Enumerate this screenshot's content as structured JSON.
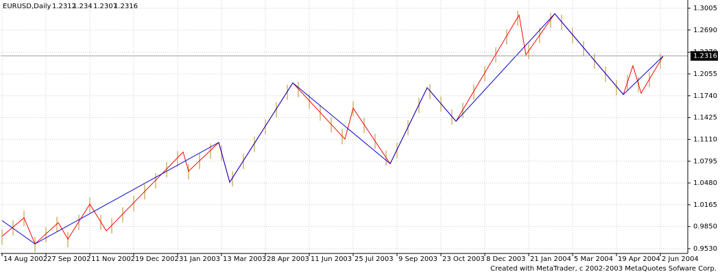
{
  "header": {
    "symbol": "EURUSD,Daily",
    "ohlc": [
      1.2312,
      1.234,
      1.2307,
      1.2316
    ]
  },
  "footer": "Created with MetaTrader, c 2002-2003 MetaQuotes Sofware Corp.",
  "chart_data": {
    "type": "line",
    "grid": true,
    "xlim": [
      -1,
      500
    ],
    "ylim": [
      0.9461,
      1.3124
    ],
    "xticks": [
      {
        "value": 0,
        "label": "14 Aug 2002"
      },
      {
        "value": 32,
        "label": "27 Sep 2002"
      },
      {
        "value": 64,
        "label": "11 Nov 2002"
      },
      {
        "value": 96,
        "label": "19 Dec 2002"
      },
      {
        "value": 128,
        "label": "31 Jan 2003"
      },
      {
        "value": 160,
        "label": "13 Mar 2003"
      },
      {
        "value": 192,
        "label": "28 Apr 2003"
      },
      {
        "value": 224,
        "label": "11 Jun 2003"
      },
      {
        "value": 256,
        "label": "25 Jul 2003"
      },
      {
        "value": 288,
        "label": "9 Sep 2003"
      },
      {
        "value": 320,
        "label": "23 Oct 2003"
      },
      {
        "value": 352,
        "label": "8 Dec 2003"
      },
      {
        "value": 384,
        "label": "21 Jan 2004"
      },
      {
        "value": 416,
        "label": "5 Mar 2004"
      },
      {
        "value": 448,
        "label": "19 Apr 2004"
      },
      {
        "value": 480,
        "label": "2 Jun 2004"
      }
    ],
    "yticks": [
      {
        "value": 0.953,
        "label": "0.9530"
      },
      {
        "value": 0.985,
        "label": "0.9850"
      },
      {
        "value": 1.0165,
        "label": "1.0165"
      },
      {
        "value": 1.048,
        "label": "1.0480"
      },
      {
        "value": 1.0795,
        "label": "1.0795"
      },
      {
        "value": 1.111,
        "label": "1.1110"
      },
      {
        "value": 1.1425,
        "label": "1.1425"
      },
      {
        "value": 1.174,
        "label": "1.1740"
      },
      {
        "value": 1.2055,
        "label": "1.2055"
      },
      {
        "value": 1.237,
        "label": "1.2370"
      },
      {
        "value": 1.269,
        "label": "1.2690"
      },
      {
        "value": 1.3005,
        "label": "1.3005"
      }
    ],
    "current_price": 1.2316,
    "bars": {
      "color": "#d8c690",
      "x": [
        0,
        8,
        16,
        24,
        32,
        40,
        48,
        56,
        64,
        72,
        80,
        88,
        96,
        104,
        112,
        120,
        128,
        136,
        144,
        152,
        160,
        168,
        176,
        184,
        192,
        200,
        208,
        216,
        224,
        232,
        240,
        248,
        256,
        264,
        272,
        280,
        288,
        296,
        304,
        312,
        320,
        328,
        336,
        344,
        352,
        360,
        368,
        376,
        384,
        392,
        400,
        408,
        416,
        424,
        432,
        440,
        448,
        456,
        464,
        472,
        480
      ],
      "high": [
        0.981,
        0.994,
        1.008,
        0.97,
        0.984,
        0.999,
        0.977,
        1.002,
        1.027,
        1.002,
        0.997,
        1.013,
        1.029,
        1.046,
        1.062,
        1.078,
        1.094,
        1.075,
        1.09,
        1.105,
        1.102,
        1.065,
        1.09,
        1.115,
        1.14,
        1.165,
        1.19,
        1.194,
        1.177,
        1.16,
        1.143,
        1.126,
        1.166,
        1.142,
        1.119,
        1.095,
        1.106,
        1.139,
        1.171,
        1.191,
        1.173,
        1.154,
        1.164,
        1.19,
        1.217,
        1.244,
        1.27,
        1.297,
        1.249,
        1.272,
        1.294,
        1.291,
        1.272,
        1.253,
        1.235,
        1.216,
        1.197,
        1.204,
        1.201,
        1.208,
        1.235
      ],
      "low": [
        0.959,
        0.972,
        0.986,
        0.948,
        0.962,
        0.977,
        0.955,
        0.98,
        1.005,
        0.98,
        0.975,
        0.991,
        1.007,
        1.024,
        1.04,
        1.056,
        1.072,
        1.053,
        1.068,
        1.083,
        1.08,
        1.043,
        1.068,
        1.093,
        1.118,
        1.143,
        1.168,
        1.172,
        1.155,
        1.138,
        1.121,
        1.104,
        1.144,
        1.12,
        1.097,
        1.073,
        1.084,
        1.117,
        1.149,
        1.169,
        1.151,
        1.132,
        1.142,
        1.168,
        1.195,
        1.222,
        1.248,
        1.275,
        1.227,
        1.25,
        1.272,
        1.269,
        1.25,
        1.231,
        1.213,
        1.194,
        1.175,
        1.182,
        1.179,
        1.186,
        1.213
      ]
    },
    "series": [
      {
        "color": "#ff0000",
        "x": [
          0,
          16,
          24,
          41,
          48,
          64,
          76,
          132,
          136,
          158,
          166,
          212,
          250,
          256,
          283,
          310,
          331,
          377,
          382,
          403,
          453,
          460,
          466,
          482
        ],
        "values": [
          0.9708,
          0.9976,
          0.9599,
          0.9906,
          0.9669,
          1.0174,
          0.9787,
          1.0926,
          1.0649,
          1.1065,
          1.049,
          1.1926,
          1.1114,
          1.156,
          1.0758,
          1.1857,
          1.1372,
          1.2906,
          1.2332,
          1.2926,
          1.1758,
          1.2174,
          1.1778,
          1.2312
        ]
      },
      {
        "color": "#0000cc",
        "x": [
          0,
          24,
          158,
          166,
          212,
          283,
          310,
          331,
          403,
          453,
          482
        ],
        "values": [
          0.9936,
          0.9599,
          1.1065,
          1.049,
          1.1926,
          1.0758,
          1.1857,
          1.1372,
          1.2926,
          1.1758,
          1.2312
        ]
      }
    ]
  }
}
